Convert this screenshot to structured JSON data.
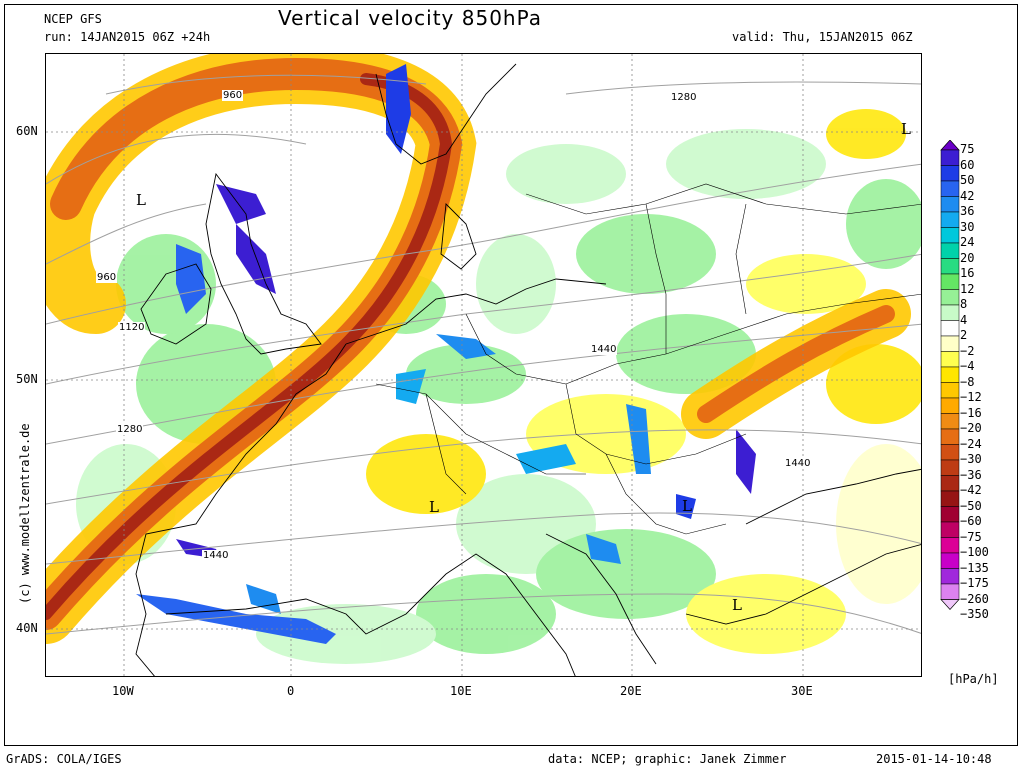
{
  "title": "Vertical velocity 850hPa",
  "model": "NCEP GFS",
  "run": "run: 14JAN2015 06Z +24h",
  "valid": "valid: Thu, 15JAN2015 06Z",
  "copyright": "(c) www.modellzentrale.de",
  "footer": {
    "grads": "GrADS: COLA/IGES",
    "credit": "data: NCEP; graphic: Janek Zimmer",
    "date": "2015-01-14-10:48"
  },
  "units": "[hPa/h]",
  "lat_labels": [
    {
      "text": "60N",
      "lat": 60
    },
    {
      "text": "50N",
      "lat": 50
    },
    {
      "text": "40N",
      "lat": 40
    }
  ],
  "lon_labels": [
    {
      "text": "10W",
      "lon": -10
    },
    {
      "text": "0",
      "lon": 0
    },
    {
      "text": "10E",
      "lon": 10
    },
    {
      "text": "20E",
      "lon": 20
    },
    {
      "text": "30E",
      "lon": 30
    }
  ],
  "legend": [
    {
      "label": "75",
      "color": "#6a00c8"
    },
    {
      "label": "60",
      "color": "#3c1ed2"
    },
    {
      "label": "50",
      "color": "#1e3ce6"
    },
    {
      "label": "42",
      "color": "#2864f0"
    },
    {
      "label": "36",
      "color": "#1e8cf0"
    },
    {
      "label": "30",
      "color": "#14aaf0"
    },
    {
      "label": "24",
      "color": "#00c8dc"
    },
    {
      "label": "20",
      "color": "#00d2aa"
    },
    {
      "label": "16",
      "color": "#28dc82"
    },
    {
      "label": "12",
      "color": "#64e664"
    },
    {
      "label": "8",
      "color": "#96f096"
    },
    {
      "label": "4",
      "color": "#c8fac8"
    },
    {
      "label": "2",
      "color": "#ffffff"
    },
    {
      "label": "−2",
      "color": "#ffffc8"
    },
    {
      "label": "−4",
      "color": "#ffff50"
    },
    {
      "label": "−8",
      "color": "#ffe600"
    },
    {
      "label": "−12",
      "color": "#ffc800"
    },
    {
      "label": "−16",
      "color": "#ffaa00"
    },
    {
      "label": "−20",
      "color": "#f08c14"
    },
    {
      "label": "−24",
      "color": "#e66e14"
    },
    {
      "label": "−30",
      "color": "#d25014"
    },
    {
      "label": "−36",
      "color": "#be3c14"
    },
    {
      "label": "−42",
      "color": "#aa2814"
    },
    {
      "label": "−50",
      "color": "#961414"
    },
    {
      "label": "−60",
      "color": "#a00032"
    },
    {
      "label": "−75",
      "color": "#be0064"
    },
    {
      "label": "−100",
      "color": "#dc0096"
    },
    {
      "label": "−135",
      "color": "#c800c8"
    },
    {
      "label": "−175",
      "color": "#a028dc"
    },
    {
      "label": "−260",
      "color": "#dc82f0"
    },
    {
      "label": "−350",
      "color": "#f0c8fa"
    }
  ],
  "contour_labels": [
    "960",
    "960",
    "1120",
    "1280",
    "1280",
    "1440",
    "1440",
    "1440"
  ],
  "low_markers": [
    "L",
    "L",
    "L",
    "L",
    "L"
  ]
}
